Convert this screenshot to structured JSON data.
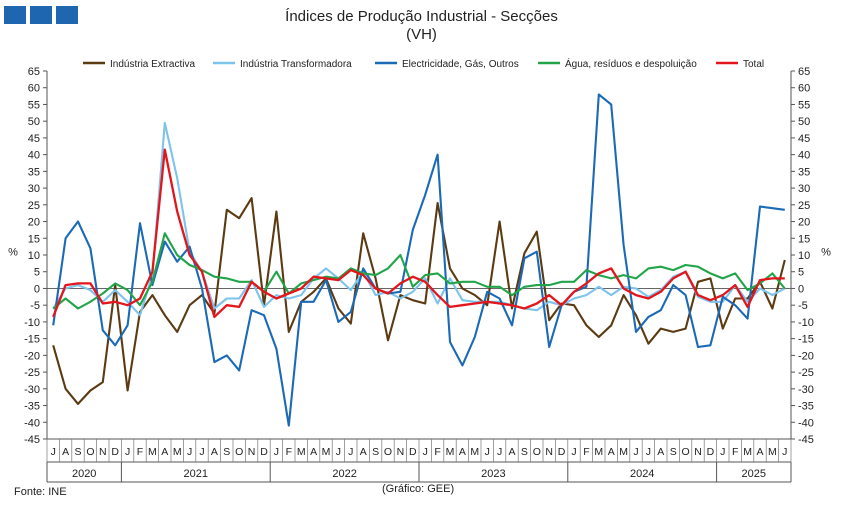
{
  "header": {
    "title": "Índices de Produção Industrial - Secções",
    "subtitle": "(VH)"
  },
  "footer": {
    "source": "Fonte: INE",
    "credit": "(Gráfico: GEE)"
  },
  "chart_data": {
    "type": "line",
    "title": "Índices de Produção Industrial - Secções",
    "subtitle": "(VH)",
    "ylabel_left": "%",
    "ylabel_right": "%",
    "ylim": [
      -45,
      65
    ],
    "yticks": [
      -45,
      -40,
      -35,
      -30,
      -25,
      -20,
      -15,
      -10,
      -5,
      0,
      5,
      10,
      15,
      20,
      25,
      30,
      35,
      40,
      45,
      50,
      55,
      60,
      65
    ],
    "grid": false,
    "legend_position": "top",
    "months": [
      "J",
      "A",
      "S",
      "O",
      "N",
      "D",
      "J",
      "F",
      "M",
      "A",
      "M",
      "J",
      "J",
      "A",
      "S",
      "O",
      "N",
      "D",
      "J",
      "F",
      "M",
      "A",
      "M",
      "J",
      "J",
      "A",
      "S",
      "O",
      "N",
      "D",
      "J",
      "F",
      "M",
      "A",
      "M",
      "J",
      "J",
      "A",
      "S",
      "O",
      "N",
      "D",
      "J",
      "F",
      "M",
      "A",
      "M",
      "J",
      "J",
      "A",
      "S",
      "O",
      "N",
      "D",
      "J",
      "F",
      "M",
      "A",
      "M",
      "J"
    ],
    "years": [
      {
        "label": "2020",
        "start": 0,
        "end": 5
      },
      {
        "label": "2021",
        "start": 6,
        "end": 17
      },
      {
        "label": "2022",
        "start": 18,
        "end": 29
      },
      {
        "label": "2023",
        "start": 30,
        "end": 41
      },
      {
        "label": "2024",
        "start": 42,
        "end": 53
      },
      {
        "label": "2025",
        "start": 54,
        "end": 59
      }
    ],
    "series": [
      {
        "name": "Indústria Extractiva",
        "color": "#5c3a12",
        "values": [
          -17,
          -30,
          -34.5,
          -30.5,
          -28,
          1,
          -30.5,
          -7,
          -2,
          -8,
          -13,
          -5,
          -2,
          -7.5,
          23.5,
          21,
          27,
          -5,
          23,
          -13,
          -4,
          -1,
          3,
          -6,
          -10.5,
          16.5,
          3,
          -15.5,
          -2,
          -3.5,
          -4.5,
          25.5,
          6,
          0,
          -2,
          -5,
          20,
          -6,
          10.5,
          17,
          -9.5,
          -4.5,
          -5,
          -11,
          -14.5,
          -11,
          -2,
          -8,
          -16.5,
          -12,
          -13,
          -12,
          2,
          3,
          -12,
          -3,
          -3,
          2,
          -6,
          8.5
        ]
      },
      {
        "name": "Indústria Transformadora",
        "color": "#7dc3ec",
        "values": [
          -6,
          0,
          1,
          -0.5,
          -4,
          -0.5,
          -4,
          -8,
          4,
          49.5,
          33,
          11,
          5,
          -6,
          -3,
          -3,
          2.5,
          -5.5,
          -2,
          -3,
          -2,
          3,
          6,
          3,
          -0.5,
          5,
          -2,
          -1,
          -3,
          -1,
          3,
          -4.5,
          3,
          -3.5,
          -4,
          -4,
          -4,
          -5,
          -6,
          -6.5,
          -4,
          -5,
          -3,
          -2,
          0.5,
          -2,
          0.5,
          0,
          -2.5,
          -0.5,
          3.5,
          5,
          -2.5,
          -4,
          -4,
          1,
          -4,
          0,
          -2,
          0
        ]
      },
      {
        "name": "Electricidade, Gás, Outros",
        "color": "#1b6ab8",
        "values": [
          -11,
          15,
          20,
          12,
          -12.5,
          -17,
          -11,
          19.5,
          1,
          14,
          8,
          12.5,
          0,
          -22,
          -20,
          -24.5,
          -6.5,
          -8,
          -18,
          -41,
          -4,
          -4,
          2.5,
          -10,
          -7,
          6,
          0,
          -1.5,
          -1,
          17.5,
          28,
          40,
          -16,
          -23,
          -14.5,
          -1,
          -3,
          -11,
          9,
          11,
          -17.5,
          -5,
          -1,
          0.5,
          58,
          55,
          13,
          -13,
          -8.5,
          -6.5,
          1,
          -2,
          -17.5,
          -17,
          -2.5,
          -5,
          -9,
          24.5,
          24,
          23.5
        ]
      },
      {
        "name": "Água, resíduos e despoluição",
        "color": "#22a54a",
        "values": [
          -6,
          -3,
          -6,
          -4,
          -1.5,
          1.5,
          -0.5,
          -5,
          2,
          16.5,
          10,
          7,
          5.5,
          3.5,
          3,
          2,
          2,
          -1,
          5,
          -1.5,
          1.5,
          2.5,
          3.5,
          3,
          6,
          4.5,
          4,
          6,
          10,
          0.5,
          4,
          4.5,
          1.5,
          2,
          2,
          0.5,
          0.5,
          -2,
          0.5,
          1,
          1,
          2,
          2,
          5.5,
          4,
          3,
          4,
          3,
          6,
          6.5,
          5.5,
          7,
          6.5,
          4.5,
          3,
          4.5,
          -0.5,
          1.5,
          4.5,
          0
        ]
      },
      {
        "name": "Total",
        "color": "#e2161c",
        "values": [
          -8.5,
          1,
          1.5,
          1.5,
          -4.5,
          -4,
          -5,
          -3,
          5,
          41.5,
          23,
          10,
          5,
          -8.5,
          -5,
          -5.5,
          2,
          -1,
          -3,
          -1.5,
          0,
          3.5,
          3,
          2.5,
          5.5,
          4,
          0,
          -1.5,
          1.5,
          3.5,
          2,
          -2,
          -5.5,
          -5,
          -4.5,
          -4,
          -4.5,
          -5,
          -6,
          -4.5,
          -2,
          -5,
          -1,
          1.5,
          4.5,
          6,
          0,
          -2,
          -3,
          -1,
          3,
          5,
          -2,
          -3.5,
          -2,
          1,
          -5.5,
          2.5,
          3,
          3
        ]
      }
    ]
  }
}
